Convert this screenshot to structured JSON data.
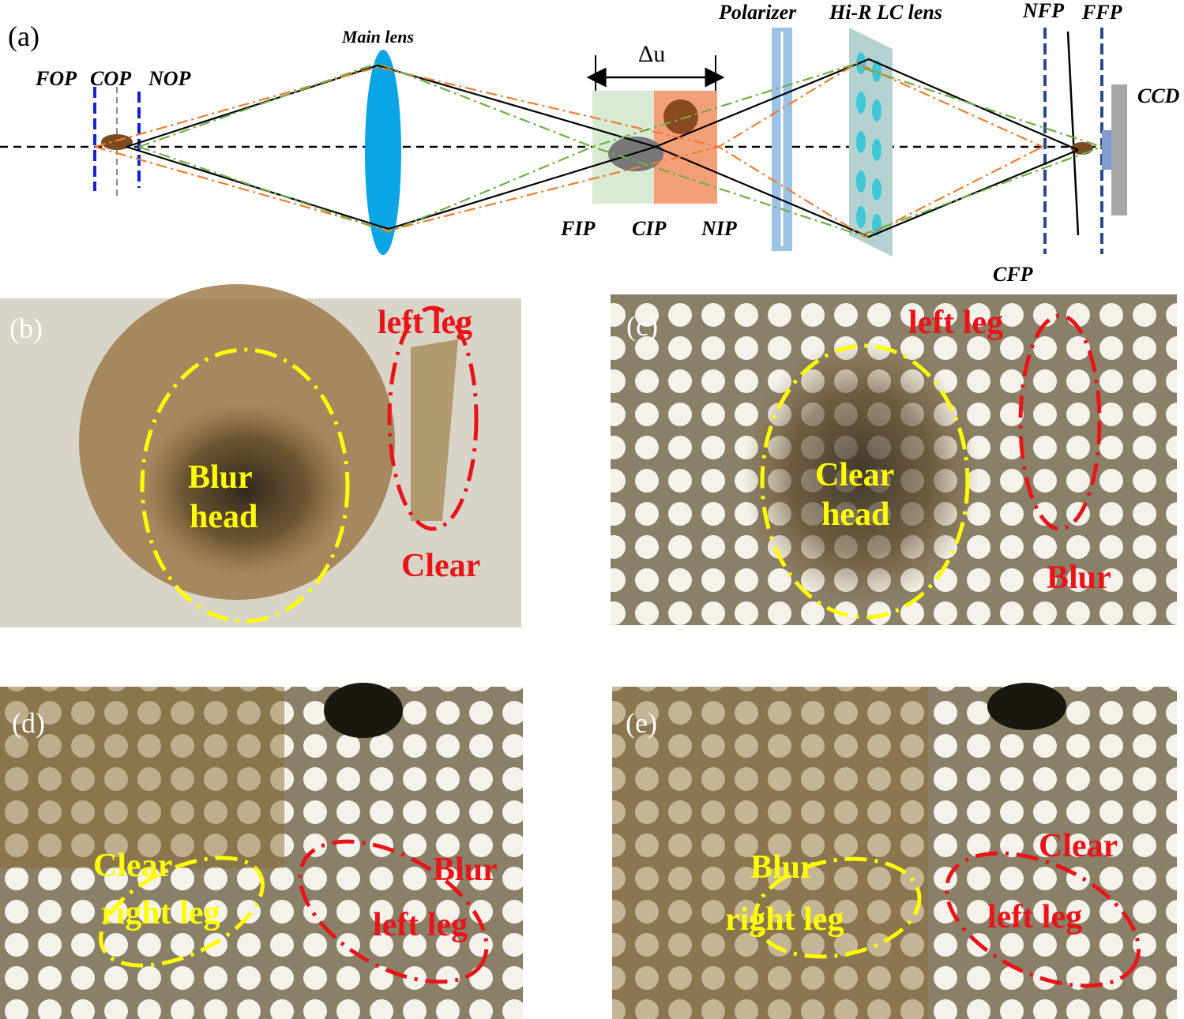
{
  "panel_a": {
    "tag": "(a)",
    "planes_object": [
      "FOP",
      "COP",
      "NOP"
    ],
    "main_lens": "Main lens",
    "delta": "Δu",
    "planes_image": [
      "FIP",
      "CIP",
      "NIP"
    ],
    "polarizer": "Polarizer",
    "lc_lens": "Hi-R LC lens",
    "planes_focus": [
      "NFP",
      "FFP",
      "CFP"
    ],
    "ccd": "CCD"
  },
  "panels": [
    {
      "tag": "(b)",
      "labels": [
        "left leg",
        "Blur",
        "head",
        "Clear"
      ]
    },
    {
      "tag": "(c)",
      "labels": [
        "left leg",
        "Clear",
        "head",
        "Blur"
      ]
    },
    {
      "tag": "(d)",
      "labels": [
        "Clear",
        "right leg",
        "Blur",
        "left leg"
      ]
    },
    {
      "tag": "(e)",
      "labels": [
        "Blur",
        "right leg",
        "Clear",
        "left leg"
      ]
    }
  ]
}
